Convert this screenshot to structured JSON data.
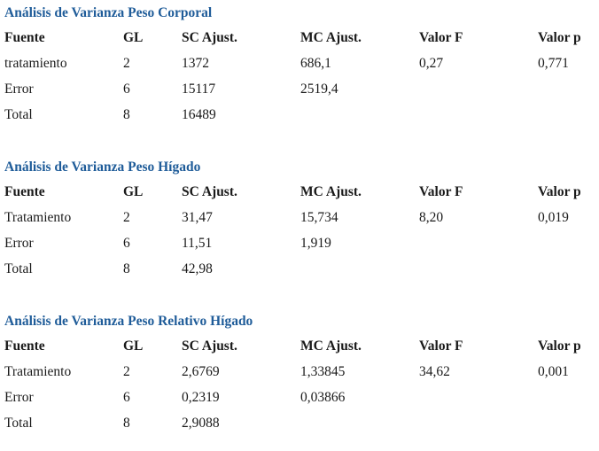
{
  "headers": [
    "Fuente",
    "GL",
    "SC Ajust.",
    "MC Ajust.",
    "Valor F",
    "Valor p"
  ],
  "tables": [
    {
      "title": "Análisis de Varianza Peso Corporal",
      "rows": [
        [
          "tratamiento",
          "2",
          "1372",
          "686,1",
          "0,27",
          "0,771"
        ],
        [
          "Error",
          "6",
          "15117",
          "2519,4",
          "",
          ""
        ],
        [
          "Total",
          "8",
          "16489",
          "",
          "",
          ""
        ]
      ]
    },
    {
      "title": "Análisis de Varianza Peso Hígado",
      "rows": [
        [
          "Tratamiento",
          "2",
          "31,47",
          "15,734",
          "8,20",
          "0,019"
        ],
        [
          "Error",
          "6",
          "11,51",
          "1,919",
          "",
          ""
        ],
        [
          "Total",
          "8",
          "42,98",
          "",
          "",
          ""
        ]
      ]
    },
    {
      "title": "Análisis de Varianza Peso Relativo Hígado",
      "rows": [
        [
          "Tratamiento",
          "2",
          "2,6769",
          "1,33845",
          "34,62",
          "0,001"
        ],
        [
          "Error",
          "6",
          "0,2319",
          "0,03866",
          "",
          ""
        ],
        [
          "Total",
          "8",
          "2,9088",
          "",
          "",
          ""
        ]
      ]
    }
  ]
}
